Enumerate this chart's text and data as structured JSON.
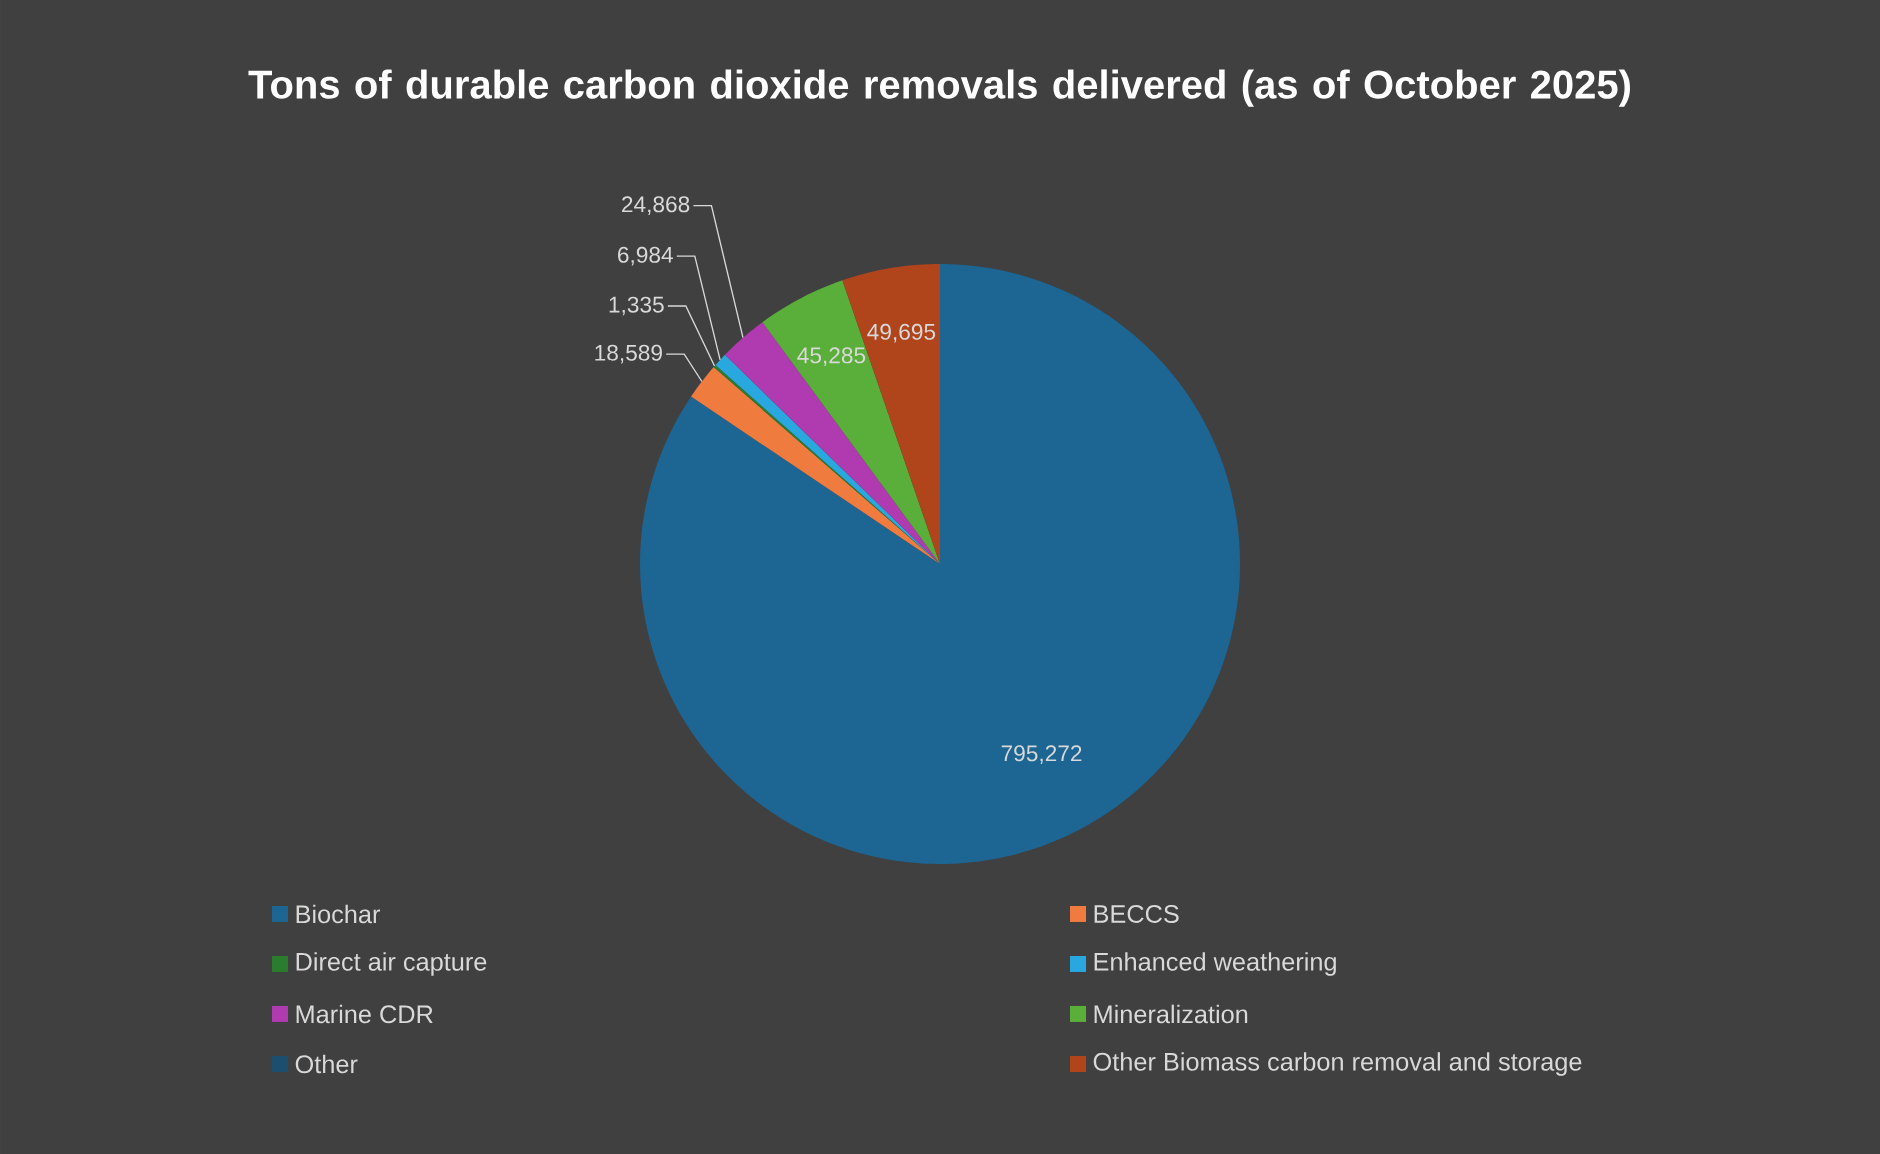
{
  "chart_data": {
    "type": "pie",
    "title": "Tons of durable carbon dioxide removals delivered (as of October 2025)",
    "categories": [
      "Biochar",
      "BECCS",
      "Direct air capture",
      "Enhanced weathering",
      "Marine CDR",
      "Mineralization",
      "Other",
      "Other Biomass carbon removal and storage"
    ],
    "values": [
      795272,
      18589,
      1335,
      6984,
      24868,
      45285,
      null,
      49695
    ],
    "colors": [
      "#1d6592",
      "#f07b3f",
      "#2a7d2e",
      "#29a8e0",
      "#b03ab0",
      "#5aae3a",
      "#1c4e6e",
      "#b0441a"
    ],
    "value_labels": [
      "795,272",
      "18,589",
      "1,335",
      "6,984",
      "24,868",
      "45,285",
      null,
      "49,695"
    ],
    "legend": "bottom"
  }
}
